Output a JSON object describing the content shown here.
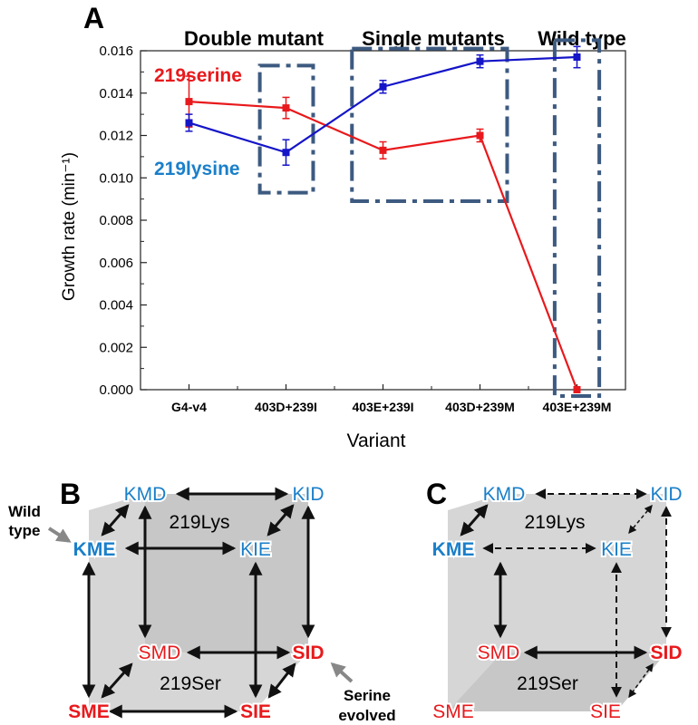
{
  "panel_a": {
    "letter": "A",
    "group_labels": [
      "Double mutant",
      "Single mutants",
      "Wild type"
    ],
    "series_labels": [
      "219serine",
      "219lysine"
    ]
  },
  "chart_data": {
    "type": "line",
    "xlabel": "Variant",
    "ylabel": "Growth rate (min⁻¹)",
    "categories": [
      "G4-v4",
      "403D+239I",
      "403E+239I",
      "403D+239M",
      "403E+239M"
    ],
    "ylim": [
      0,
      0.016
    ],
    "yticks": [
      "0.000",
      "0.002",
      "0.004",
      "0.006",
      "0.008",
      "0.010",
      "0.012",
      "0.014",
      "0.016"
    ],
    "grid": false,
    "series": [
      {
        "name": "219serine",
        "color": "#e8191c",
        "values": [
          0.0136,
          0.0133,
          0.0113,
          0.012,
          0.0
        ],
        "errors": [
          0.0012,
          0.0005,
          0.0004,
          0.0003,
          0.0
        ]
      },
      {
        "name": "219lysine",
        "color": "#1515c8",
        "values": [
          0.0126,
          0.0112,
          0.0143,
          0.0155,
          0.0157
        ],
        "errors": [
          0.0004,
          0.0006,
          0.0003,
          0.0003,
          0.0005
        ]
      }
    ]
  },
  "panel_b": {
    "letter": "B",
    "nodes": {
      "kmd": "KMD",
      "kid": "KID",
      "kme": "KME",
      "kie": "KIE",
      "smd": "SMD",
      "sid": "SID",
      "sme": "SME",
      "sie": "SIE"
    },
    "face_top": "219Lys",
    "face_bottom": "219Ser",
    "wild_line1": "Wild",
    "wild_line2": "type",
    "serine_line1": "Serine",
    "serine_line2": "evolved"
  },
  "panel_c": {
    "letter": "C",
    "nodes": {
      "kmd": "KMD",
      "kid": "KID",
      "kme": "KME",
      "kie": "KIE",
      "smd": "SMD",
      "sid": "SID",
      "sme": "SME",
      "sie": "SIE"
    },
    "face_top": "219Lys",
    "face_bottom": "219Ser"
  },
  "colors": {
    "lysine_text": "#1a7fc9",
    "serine_text": "#e8191c",
    "box": "#3d5a80",
    "cube_fill": "#cfcfcf"
  }
}
